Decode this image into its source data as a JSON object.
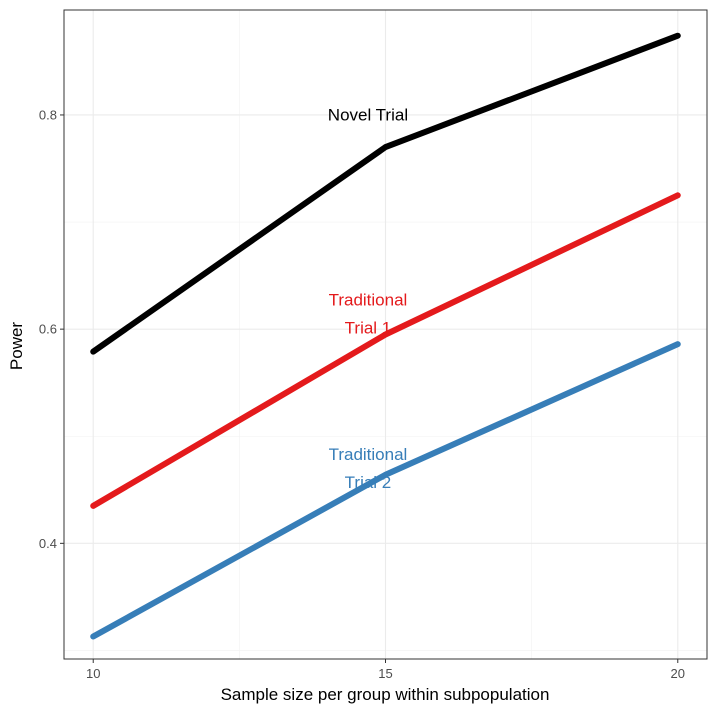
{
  "chart_data": {
    "type": "line",
    "title": "",
    "xlabel": "Sample size per group within subpopulation",
    "ylabel": "Power",
    "x": [
      10,
      15,
      20
    ],
    "xlim": [
      9.5,
      20.5
    ],
    "ylim": [
      0.292,
      0.898
    ],
    "x_ticks": [
      10,
      15,
      20
    ],
    "x_tick_labels": [
      "10",
      "15",
      "20"
    ],
    "x_minor": [
      12.5,
      17.5
    ],
    "y_ticks": [
      0.4,
      0.6,
      0.8
    ],
    "y_tick_labels": [
      "0.4",
      "0.6",
      "0.8"
    ],
    "y_minor": [
      0.3,
      0.5,
      0.7
    ],
    "grid": true,
    "legend": "none (direct labels)",
    "series": [
      {
        "name": "Novel Trial",
        "values": [
          0.579,
          0.77,
          0.874
        ],
        "color": "#000000",
        "label_lines": [
          "Novel Trial"
        ],
        "label_x": 14.7,
        "label_y": 0.795
      },
      {
        "name": "Traditional Trial 1",
        "values": [
          0.435,
          0.595,
          0.725
        ],
        "color": "#E41A1C",
        "label_lines": [
          "Traditional",
          "Trial 1"
        ],
        "label_x": 14.7,
        "label_y": 0.622
      },
      {
        "name": "Traditional Trial 2",
        "values": [
          0.313,
          0.464,
          0.586
        ],
        "color": "#377EB8",
        "label_lines": [
          "Traditional",
          "Trial 2"
        ],
        "label_x": 14.7,
        "label_y": 0.478
      }
    ]
  }
}
